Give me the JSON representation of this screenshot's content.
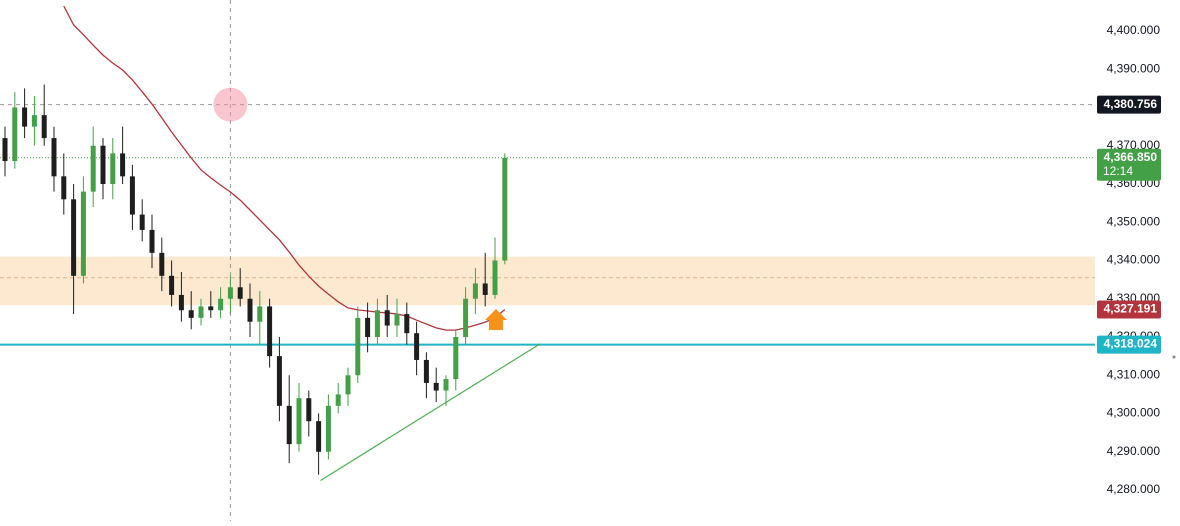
{
  "chart_data": {
    "type": "candlestick",
    "up_color": "#43a047",
    "down_color": "#1e1e1e",
    "open": [
      4372,
      4366,
      4380,
      4375,
      4378,
      4372,
      4362,
      4356,
      4336,
      4358,
      4370,
      4360,
      4368,
      4362,
      4352,
      4348,
      4342,
      4336,
      4331,
      4327,
      4325,
      4328,
      4327,
      4330,
      4333,
      4330,
      4324,
      4328,
      4315,
      4302,
      4292,
      4304,
      4298,
      4290,
      4302,
      4305,
      4310,
      4325,
      4320,
      4327,
      4323,
      4326,
      4321,
      4314,
      4308,
      4306,
      4309,
      4320,
      4330,
      4334,
      4331,
      4340
    ],
    "high": [
      4375,
      4384,
      4385,
      4383,
      4386,
      4375,
      4368,
      4360,
      4362,
      4375,
      4372,
      4372,
      4375,
      4365,
      4356,
      4352,
      4346,
      4340,
      4337,
      4332,
      4330,
      4332,
      4333,
      4336,
      4338,
      4334,
      4332,
      4330,
      4320,
      4310,
      4308,
      4306,
      4300,
      4305,
      4308,
      4312,
      4328,
      4329,
      4330,
      4331,
      4330,
      4329,
      4324,
      4316,
      4312,
      4310,
      4322,
      4333,
      4338,
      4342,
      4346,
      4368
    ],
    "low": [
      4362,
      4364,
      4372,
      4370,
      4370,
      4358,
      4352,
      4326,
      4334,
      4354,
      4356,
      4356,
      4360,
      4348,
      4345,
      4338,
      4332,
      4328,
      4324,
      4322,
      4323,
      4325,
      4325,
      4326,
      4328,
      4320,
      4318,
      4312,
      4298,
      4287,
      4290,
      4294,
      4284,
      4288,
      4300,
      4302,
      4308,
      4316,
      4318,
      4320,
      4320,
      4318,
      4310,
      4304,
      4303,
      4302,
      4306,
      4318,
      4326,
      4328,
      4330,
      4339
    ],
    "close": [
      4366,
      4380,
      4375,
      4378,
      4372,
      4362,
      4356,
      4336,
      4358,
      4370,
      4360,
      4368,
      4362,
      4352,
      4348,
      4342,
      4336,
      4331,
      4327,
      4325,
      4328,
      4327,
      4330,
      4333,
      4330,
      4324,
      4328,
      4315,
      4302,
      4292,
      4304,
      4298,
      4290,
      4302,
      4305,
      4310,
      4325,
      4320,
      4327,
      4323,
      4326,
      4321,
      4314,
      4308,
      4306,
      4309,
      4320,
      4330,
      4334,
      4331,
      4340,
      4366.85
    ],
    "ma": {
      "color": "#b2343c",
      "values": [
        null,
        null,
        null,
        null,
        null,
        null,
        4406.5,
        4401.6,
        4399,
        4396.3,
        4393.7,
        4391.6,
        4389.8,
        4387.2,
        4384.1,
        4380.9,
        4377.3,
        4373.6,
        4370.2,
        4366.8,
        4363.7,
        4361.6,
        4359.7,
        4357.9,
        4355.8,
        4353.2,
        4350.6,
        4348,
        4345.4,
        4342.2,
        4338.8,
        4335.9,
        4333.3,
        4331.2,
        4329.2,
        4327.6,
        4327.1,
        4326.8,
        4326.5,
        4326.3,
        4326,
        4325.5,
        4324.4,
        4323.4,
        4322.4,
        4321.8,
        4321.8,
        4322.4,
        4323.1,
        4323.9,
        4325,
        4327.2
      ]
    },
    "ylim": [
      4271.9,
      4408.1
    ],
    "yticks": [
      {
        "value": 4280,
        "label": "4,280.000"
      },
      {
        "value": 4290,
        "label": "4,290.000"
      },
      {
        "value": 4300,
        "label": "4,300.000"
      },
      {
        "value": 4310,
        "label": "4,310.000"
      },
      {
        "value": 4320,
        "label": "4,320.000"
      },
      {
        "value": 4330,
        "label": "4,330.000"
      },
      {
        "value": 4340,
        "label": "4,340.000"
      },
      {
        "value": 4350,
        "label": "4,350.000"
      },
      {
        "value": 4360,
        "label": "4,360.000"
      },
      {
        "value": 4370,
        "label": "4,370.000"
      },
      {
        "value": 4390,
        "label": "4,390.000"
      },
      {
        "value": 4400,
        "label": "4,400.000"
      }
    ],
    "zone": {
      "color": "#fde4c4",
      "range": [
        4328.3,
        4341
      ],
      "mid": 4335.5
    },
    "support": {
      "value": 4318.024,
      "label": "4,318.024",
      "color": "#1fb5c7"
    },
    "trendline": {
      "x": [
        32.2,
        54.6
      ],
      "values": [
        4282.5,
        4318.2
      ],
      "color": "#4caf50"
    },
    "crosshair": {
      "x": 23,
      "value": 4380.756,
      "label": "4,380.756"
    },
    "last_price": {
      "value": 4366.85,
      "label": "4,366.850",
      "countdown": "12:14",
      "color": "#43a047"
    },
    "ma_label": {
      "value": 4327.191,
      "label": "4,327.191"
    }
  }
}
